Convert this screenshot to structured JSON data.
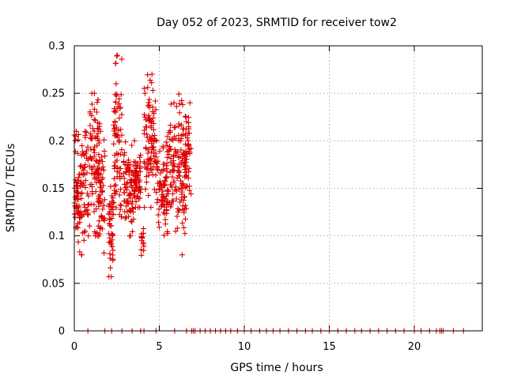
{
  "chart_data": {
    "type": "scatter",
    "title": "Day 052 of 2023, SRMTID for receiver tow2",
    "xlabel": "GPS time / hours",
    "ylabel": "SRMTID / TECUs",
    "xlim": [
      0,
      24
    ],
    "ylim": [
      0,
      0.3
    ],
    "x_ticks": [
      0,
      5,
      10,
      15,
      20
    ],
    "x_tick_labels": [
      "0",
      "5",
      "10",
      "15",
      "20"
    ],
    "y_ticks": [
      0,
      0.05,
      0.1,
      0.15,
      0.2,
      0.25,
      0.3
    ],
    "y_tick_labels": [
      "0",
      "0.05",
      "0.1",
      "0.15",
      "0.2",
      "0.25",
      "0.3"
    ],
    "grid": true,
    "marker": "+",
    "color": "#dd0000",
    "active_windows": [
      {
        "x_start": 0.0,
        "x_end": 0.8,
        "y_min": 0.08,
        "y_max": 0.21,
        "n": 110
      },
      {
        "x_start": 0.8,
        "x_end": 1.5,
        "y_min": 0.1,
        "y_max": 0.25,
        "n": 90
      },
      {
        "x_start": 1.4,
        "x_end": 1.8,
        "y_min": 0.07,
        "y_max": 0.21,
        "n": 50
      },
      {
        "x_start": 2.0,
        "x_end": 2.3,
        "y_min": 0.05,
        "y_max": 0.16,
        "n": 45
      },
      {
        "x_start": 2.3,
        "x_end": 2.8,
        "y_min": 0.12,
        "y_max": 0.29,
        "n": 80
      },
      {
        "x_start": 2.9,
        "x_end": 3.6,
        "y_min": 0.1,
        "y_max": 0.2,
        "n": 75
      },
      {
        "x_start": 3.5,
        "x_end": 3.9,
        "y_min": 0.13,
        "y_max": 0.19,
        "n": 60
      },
      {
        "x_start": 3.9,
        "x_end": 4.1,
        "y_min": 0.075,
        "y_max": 0.11,
        "n": 15
      },
      {
        "x_start": 4.1,
        "x_end": 4.8,
        "y_min": 0.13,
        "y_max": 0.27,
        "n": 95
      },
      {
        "x_start": 4.8,
        "x_end": 5.5,
        "y_min": 0.1,
        "y_max": 0.2,
        "n": 70
      },
      {
        "x_start": 5.4,
        "x_end": 6.0,
        "y_min": 0.1,
        "y_max": 0.24,
        "n": 65
      },
      {
        "x_start": 6.0,
        "x_end": 6.6,
        "y_min": 0.08,
        "y_max": 0.25,
        "n": 85
      },
      {
        "x_start": 6.5,
        "x_end": 6.9,
        "y_min": 0.14,
        "y_max": 0.24,
        "n": 40
      }
    ],
    "zero_points_x": [
      0.8,
      1.8,
      2.2,
      2.8,
      3.4,
      3.9,
      4.1,
      4.8,
      5.9,
      6.6,
      6.9,
      7.0,
      7.1,
      7.4,
      7.7,
      8.0,
      8.3,
      8.6,
      8.9,
      9.2,
      9.6,
      10.0,
      10.4,
      10.9,
      11.3,
      11.7,
      12.1,
      12.6,
      13.1,
      13.6,
      14.0,
      14.5,
      15.0,
      15.5,
      16.0,
      16.5,
      16.9,
      17.4,
      17.9,
      18.4,
      18.9,
      19.4,
      20.0,
      20.4,
      20.9,
      21.3,
      21.5,
      21.6,
      21.7,
      22.3,
      22.9
    ]
  }
}
